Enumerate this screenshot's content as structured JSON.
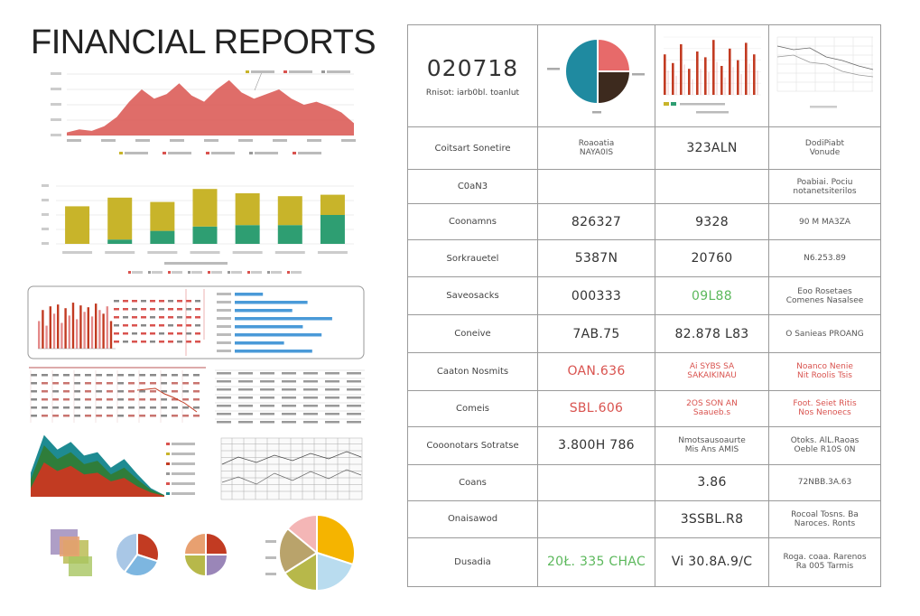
{
  "page": {
    "title": "FINANCIAL REPORTS"
  },
  "colors": {
    "area_red": "#d9534f",
    "olive": "#c8b42a",
    "green": "#2e9e72",
    "blue": "#4a9ad8",
    "teal": "#1e8b92",
    "dark_red": "#c23b22",
    "pie_teal": "#1f8aa0",
    "pie_salmon": "#e76a6a",
    "pie_brown": "#3d2a1e",
    "pie_yellow": "#f5b400",
    "pie_light_blue": "#b9dcef",
    "pie_olive": "#b7b84a",
    "pie_pink": "#f4b6b6",
    "pie_purple": "#9a86b8"
  },
  "chart_data": [
    {
      "id": "area-chart",
      "type": "area",
      "x": [
        0,
        1,
        2,
        3,
        4,
        5,
        6,
        7,
        8,
        9,
        10,
        11,
        12,
        13,
        14,
        15,
        16,
        17,
        18,
        19,
        20,
        21,
        22,
        23
      ],
      "values": [
        2,
        4,
        3,
        6,
        12,
        22,
        30,
        24,
        27,
        34,
        26,
        22,
        30,
        36,
        28,
        24,
        27,
        30,
        24,
        20,
        22,
        19,
        15,
        8
      ],
      "ylim": [
        0,
        40
      ]
    },
    {
      "id": "stacked-bar-chart",
      "type": "bar",
      "categories": [
        "1",
        "2",
        "3",
        "4",
        "5",
        "6",
        "7"
      ],
      "series": [
        {
          "values": [
            0,
            3,
            9,
            12,
            13,
            13,
            20
          ]
        },
        {
          "values": [
            26,
            29,
            20,
            26,
            22,
            20,
            14
          ]
        }
      ],
      "ylim": [
        0,
        40
      ]
    },
    {
      "id": "mini-bar-chart",
      "type": "bar",
      "values": [
        30,
        42,
        25,
        46,
        38,
        48,
        28,
        44,
        36,
        50,
        32,
        47,
        40,
        45,
        35,
        49,
        42,
        38,
        46,
        30
      ],
      "ylim": [
        0,
        55
      ]
    },
    {
      "id": "horizontal-bar-chart",
      "type": "bar",
      "values": [
        24,
        62,
        49,
        83,
        58,
        74,
        42,
        66
      ],
      "xlim": [
        0,
        100
      ]
    },
    {
      "id": "mountain-chart",
      "type": "area",
      "x": [
        0,
        1,
        2,
        3,
        4,
        5,
        6,
        7,
        8,
        9,
        10
      ],
      "series": [
        {
          "values": [
            28,
            72,
            55,
            64,
            48,
            52,
            34,
            44,
            26,
            10,
            2
          ]
        },
        {
          "values": [
            20,
            60,
            44,
            52,
            38,
            42,
            26,
            34,
            20,
            8,
            2
          ]
        },
        {
          "values": [
            10,
            40,
            30,
            36,
            26,
            28,
            18,
            22,
            12,
            5,
            1
          ]
        }
      ],
      "ylim": [
        0,
        80
      ]
    },
    {
      "id": "pie-small-1",
      "type": "pie",
      "values": [
        30,
        30,
        40
      ]
    },
    {
      "id": "pie-small-2",
      "type": "pie",
      "values": [
        25,
        25,
        25,
        25
      ]
    },
    {
      "id": "pie-large",
      "type": "pie",
      "values": [
        30,
        20,
        16,
        20,
        14
      ]
    },
    {
      "id": "pie-header",
      "type": "pie",
      "values": [
        25,
        25,
        50
      ]
    },
    {
      "id": "header-bar-chart",
      "type": "bar",
      "values": [
        28,
        22,
        35,
        18,
        30,
        26,
        38,
        20,
        32,
        24,
        36,
        28
      ],
      "ylim": [
        0,
        40
      ]
    }
  ],
  "table": {
    "header": {
      "number": "020718",
      "subtitle": "Rnisot: iarb0bl. toanlut"
    },
    "rows": [
      [
        "Coitsart Sonetire",
        "Roaoatia\nNAYA0IS",
        "323ALN",
        "DodiPiabt\nVonude"
      ],
      [
        "C0aN3",
        "",
        "",
        "Poabiai. Pociu\nnotanetsiterilos"
      ],
      [
        "Coonamns",
        "826327",
        "9328",
        "90 M MA3ZA"
      ],
      [
        "Sorkrauetel",
        "5387N",
        "20760",
        "N6.253.89"
      ],
      [
        "Saveosacks",
        "000333",
        "09L88",
        "Eoo Rosetaes\nComenes Nasalsee"
      ],
      [
        "Coneive",
        "7AB.75",
        "82.878 L83",
        "O Sanieas PROANG"
      ],
      [
        "Caaton Nosmits",
        "OAN.636",
        "Ai SYBS SA\nSAKAIKINAU",
        "Noanco Nenie\nNit Roolis Tsis"
      ],
      [
        "Comeis",
        "SBL.606",
        "2OS SON AN\nSaaueb.s",
        "Foot. Seiet Ritis\nNos Nenoecs"
      ],
      [
        "Cooonotars Sotratse",
        "3.800H 786",
        "Nmotsausoaurte\nMis Ans AMIS",
        "Otoks. AlL.Raoas\nOeble R10S 0N"
      ],
      [
        "Coans",
        "",
        "3.86",
        "72NBB.3A.63"
      ],
      [
        "Onaisawod",
        "",
        "3SSBL.R8",
        "Rocoal Tosns. Ba\nNaroces. Ronts"
      ],
      [
        "Dusadia",
        "20Ł. 335 CHAC",
        "Vi 30.8A.9/C",
        "Roga. coaa. Rarenos\nRa 005 Tarmis"
      ]
    ]
  }
}
